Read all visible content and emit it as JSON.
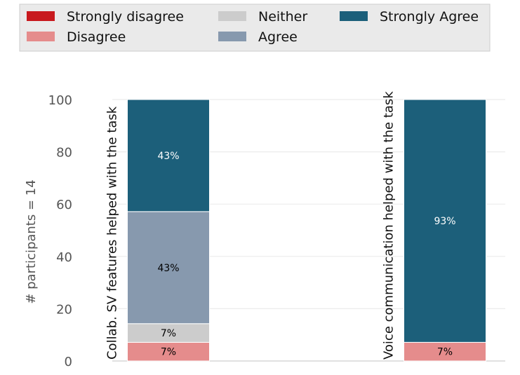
{
  "chart_data": {
    "type": "bar",
    "stacked": true,
    "title": "",
    "xlabel": "",
    "ylabel": "# participants = 14",
    "ylim": [
      0,
      100
    ],
    "yticks": [
      "0",
      "20",
      "40",
      "60",
      "80",
      "100"
    ],
    "grid": true,
    "legend_position": "top",
    "categories": [
      "Collab. SV features helped with the task",
      "Voice communication helped with the task"
    ],
    "series": [
      {
        "name": "Strongly disagree",
        "color": "#c8191e",
        "values": [
          0,
          0
        ],
        "labels": [
          "",
          ""
        ]
      },
      {
        "name": "Disagree",
        "color": "#e58c8c",
        "values": [
          7.14,
          7.14
        ],
        "labels": [
          "7%",
          "7%"
        ]
      },
      {
        "name": "Neither",
        "color": "#cccccc",
        "values": [
          7.14,
          0
        ],
        "labels": [
          "7%",
          ""
        ]
      },
      {
        "name": "Agree",
        "color": "#8799ae",
        "values": [
          42.86,
          0
        ],
        "labels": [
          "43%",
          ""
        ]
      },
      {
        "name": "Strongly Agree",
        "color": "#1c5f7a",
        "values": [
          42.86,
          92.86
        ],
        "labels": [
          "43%",
          "93%"
        ]
      }
    ]
  }
}
